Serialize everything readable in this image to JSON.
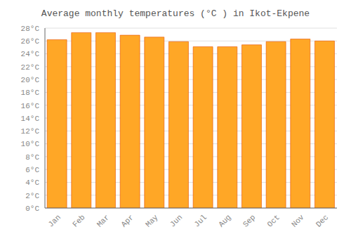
{
  "chart_data": {
    "type": "bar",
    "title": "Average monthly temperatures (°C ) in Ikot-Ekpene",
    "categories": [
      "Jan",
      "Feb",
      "Mar",
      "Apr",
      "May",
      "Jun",
      "Jul",
      "Aug",
      "Sep",
      "Oct",
      "Nov",
      "Dec"
    ],
    "values": [
      26.2,
      27.3,
      27.3,
      26.9,
      26.6,
      25.9,
      25.1,
      25.1,
      25.4,
      25.9,
      26.3,
      26.0
    ],
    "color": "#FFA726",
    "ylim": [
      0,
      28
    ],
    "yticks": [
      {
        "value": 0,
        "label": "0°C"
      },
      {
        "value": 2,
        "label": "2°C"
      },
      {
        "value": 4,
        "label": "4°C"
      },
      {
        "value": 6,
        "label": "6°C"
      },
      {
        "value": 8,
        "label": "8°C"
      },
      {
        "value": 10,
        "label": "10°C"
      },
      {
        "value": 12,
        "label": "12°C"
      },
      {
        "value": 14,
        "label": "14°C"
      },
      {
        "value": 16,
        "label": "16°C"
      },
      {
        "value": 18,
        "label": "18°C"
      },
      {
        "value": 20,
        "label": "20°C"
      },
      {
        "value": 22,
        "label": "22°C"
      },
      {
        "value": 24,
        "label": "24°C"
      },
      {
        "value": 26,
        "label": "26°C"
      },
      {
        "value": 28,
        "label": "28°C"
      }
    ],
    "grid": true
  }
}
